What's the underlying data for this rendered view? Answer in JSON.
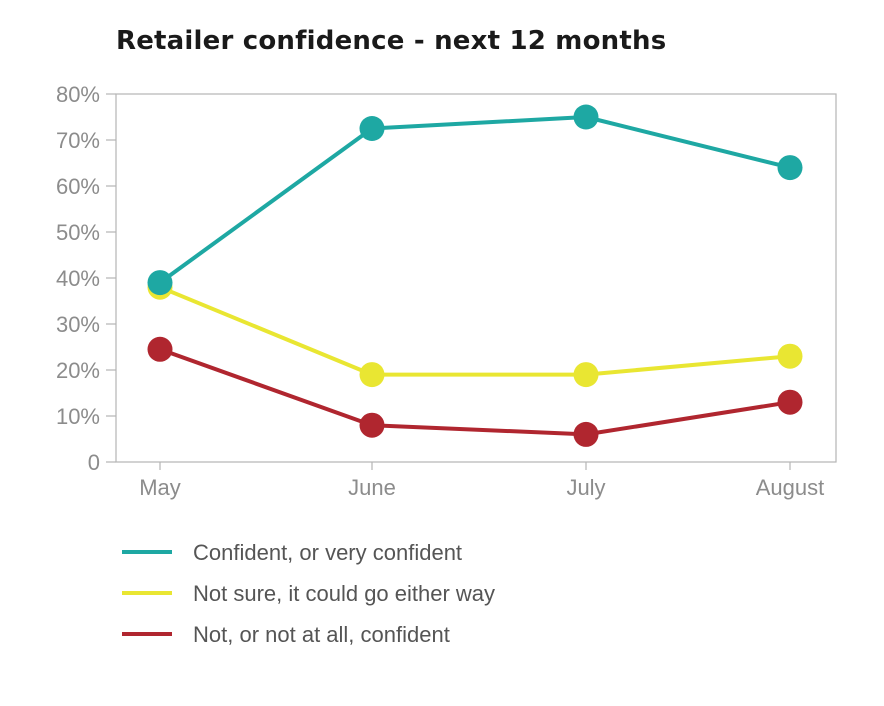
{
  "chart_data": {
    "type": "line",
    "title": "Retailer confidence - next 12 months",
    "categories": [
      "May",
      "June",
      "July",
      "August"
    ],
    "ylim": [
      0,
      80
    ],
    "yticks": [
      0,
      10,
      20,
      30,
      40,
      50,
      60,
      70,
      80
    ],
    "ytick_labels": [
      "0",
      "10%",
      "20%",
      "30%",
      "40%",
      "50%",
      "60%",
      "70%",
      "80%"
    ],
    "grid": false,
    "legend_position": "bottom",
    "series": [
      {
        "name": "Confident, or very confident",
        "color": "#1ea8a3",
        "values": [
          39,
          72.5,
          75,
          64
        ]
      },
      {
        "name": "Not sure, it could go either way",
        "color": "#e9e632",
        "values": [
          38,
          19,
          19,
          23
        ]
      },
      {
        "name": "Not, or not at all, confident",
        "color": "#b0262f",
        "values": [
          24.5,
          8,
          6,
          13
        ]
      }
    ]
  }
}
